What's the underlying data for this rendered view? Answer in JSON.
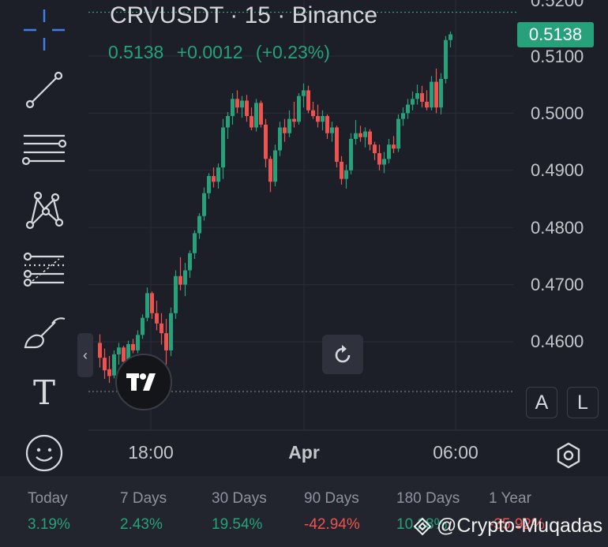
{
  "header": {
    "symbol_title": "CRVUSDT · 15 · Binance",
    "last_price": "0.5138",
    "change_abs": "+0.0012",
    "change_pct": "(+0.23%)"
  },
  "price_badge": "0.5138",
  "y_axis": {
    "ticks": [
      "0.5200",
      "0.5100",
      "0.5000",
      "0.4900",
      "0.4800",
      "0.4700",
      "0.4600"
    ]
  },
  "x_axis": {
    "ticks": [
      "18:00",
      "Apr",
      "06:00"
    ]
  },
  "buttons": {
    "auto_label": "A",
    "log_label": "L"
  },
  "toolbar": {
    "tools": [
      "crosshair-icon",
      "trend-line-icon",
      "horizontal-lines-icon",
      "pattern-icon",
      "fib-lines-icon",
      "brush-icon",
      "text-icon",
      "emoji-icon"
    ],
    "text_tool_label": "T"
  },
  "performance": [
    {
      "label": "Today",
      "value": "3.19%"
    },
    {
      "label": "7 Days",
      "value": "2.43%"
    },
    {
      "label": "30 Days",
      "value": "19.54%"
    },
    {
      "label": "90 Days",
      "value": "-42.94%"
    },
    {
      "label": "180 Days",
      "value": "10.28%"
    },
    {
      "label": "1 Year",
      "value": "-35.92%"
    }
  ],
  "watermark": "@Crypto-Muqadas",
  "colors": {
    "up": "#26a17a",
    "down": "#ef5350",
    "background": "#1c1f28",
    "grid": "#2a2e38"
  }
}
